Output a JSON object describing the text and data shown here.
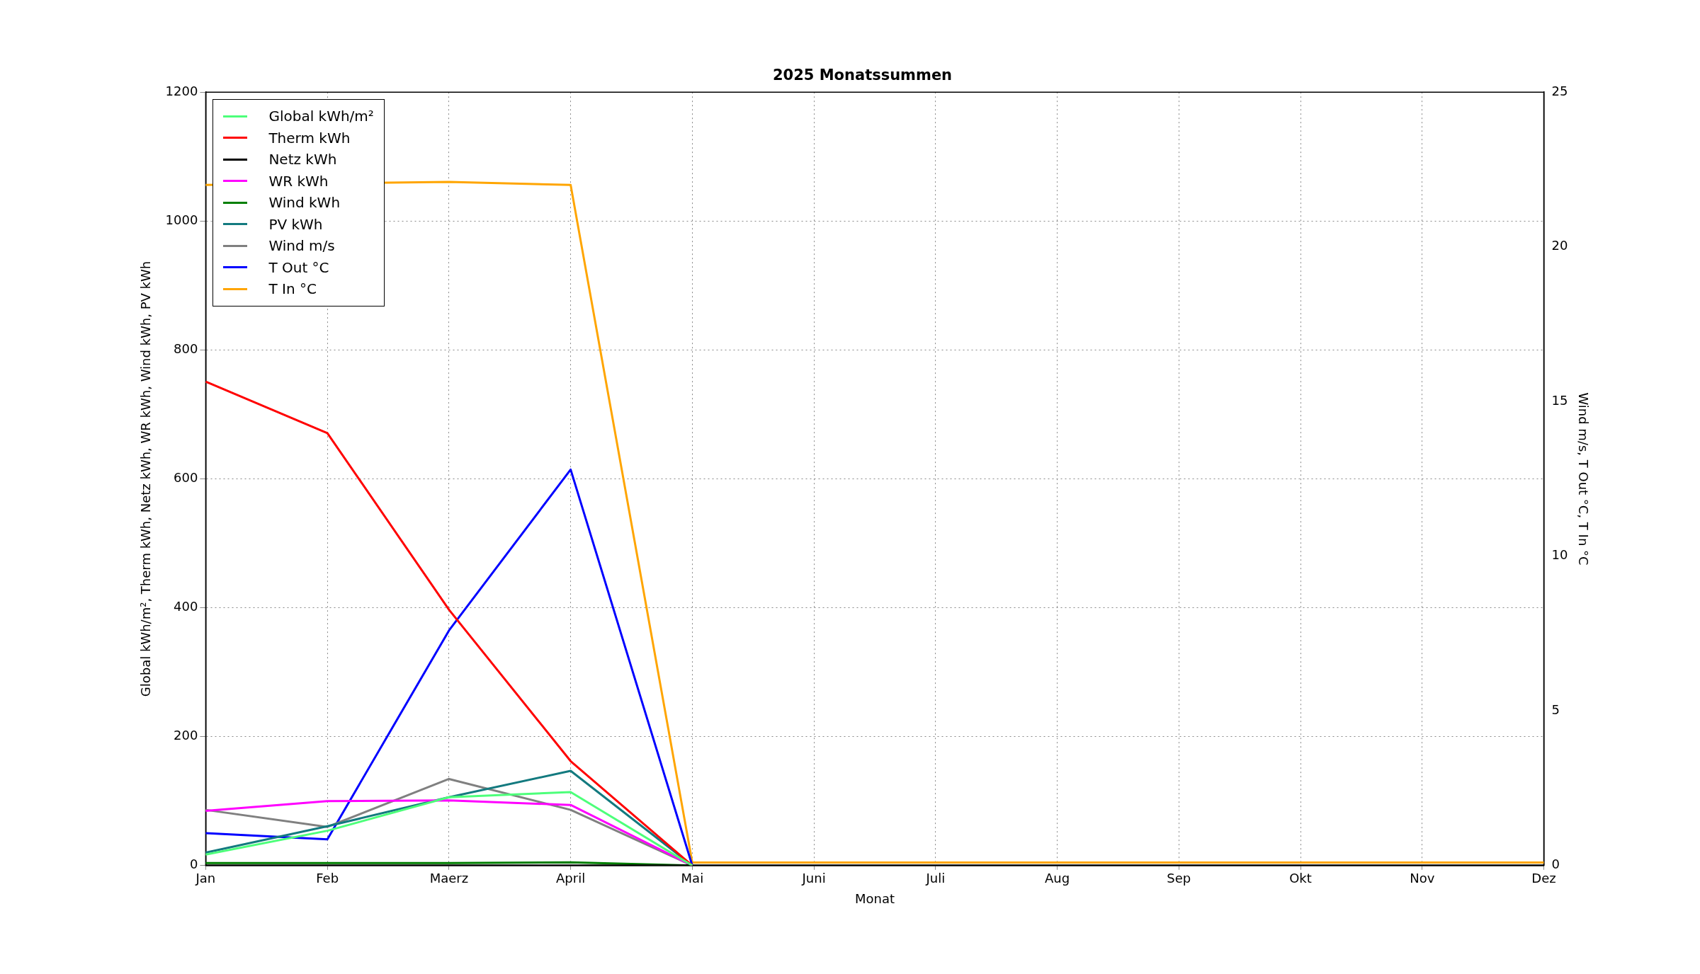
{
  "chart_data": {
    "type": "line",
    "title": "2025 Monatssummen",
    "xlabel": "Monat",
    "ylabel": "Global kWh/m², Therm kWh, Netz kWh, WR kWh, Wind kWh, PV kWh",
    "y2label": "Wind m/s, T Out °C, T In °C",
    "categories": [
      "Jan",
      "Feb",
      "Maerz",
      "April",
      "Mai",
      "Juni",
      "Juli",
      "Aug",
      "Sep",
      "Okt",
      "Nov",
      "Dez"
    ],
    "series": [
      {
        "name": "Global kWh/m²",
        "color": "#4dff7a",
        "values": [
          17,
          54,
          106,
          114,
          0,
          null,
          null,
          null,
          null,
          null,
          null,
          null
        ]
      },
      {
        "name": "Therm kWh",
        "color": "#ff0000",
        "values": [
          751,
          671,
          397,
          162,
          0,
          null,
          null,
          null,
          null,
          null,
          null,
          null
        ]
      },
      {
        "name": "Netz kWh",
        "color": "#000000",
        "values": [
          0,
          0,
          0,
          0,
          0,
          0,
          0,
          0,
          0,
          0,
          0,
          0
        ]
      },
      {
        "name": "WR kWh",
        "color": "#ff00ff",
        "values": [
          85,
          100,
          101,
          94,
          0,
          null,
          null,
          null,
          null,
          null,
          null,
          null
        ]
      },
      {
        "name": "Wind kWh",
        "color": "#007f00",
        "values": [
          4,
          4,
          4,
          5,
          0,
          null,
          null,
          null,
          null,
          null,
          null,
          null
        ]
      },
      {
        "name": "PV kWh",
        "color": "#137a7f",
        "values": [
          20,
          61,
          106,
          147,
          0,
          null,
          null,
          null,
          null,
          null,
          null,
          null
        ]
      },
      {
        "name": "Wind m/s",
        "color": "#808080",
        "axis": "y2",
        "values": [
          1.8,
          1.25,
          2.8,
          1.8,
          0,
          null,
          null,
          null,
          null,
          null,
          null,
          null
        ]
      },
      {
        "name": "T Out °C",
        "color": "#0000ff",
        "axis": "y2",
        "values": [
          1.05,
          0.85,
          7.6,
          12.8,
          0,
          null,
          null,
          null,
          null,
          null,
          null,
          null
        ]
      },
      {
        "name": "T In °C",
        "color": "#ffa500",
        "axis": "y2",
        "values": [
          22.0,
          null,
          22.1,
          22.0,
          0.1,
          0.1,
          0.1,
          0.1,
          0.1,
          0.1,
          0.1,
          0.1
        ]
      }
    ],
    "ylim": [
      0,
      1200
    ],
    "yticks": [
      0,
      200,
      400,
      600,
      800,
      1000,
      1200
    ],
    "y2lim": [
      0,
      25
    ],
    "y2ticks": [
      0,
      5,
      10,
      15,
      20,
      25
    ],
    "grid": true,
    "legend": "top left",
    "marker": "none",
    "line_style": "solid"
  }
}
